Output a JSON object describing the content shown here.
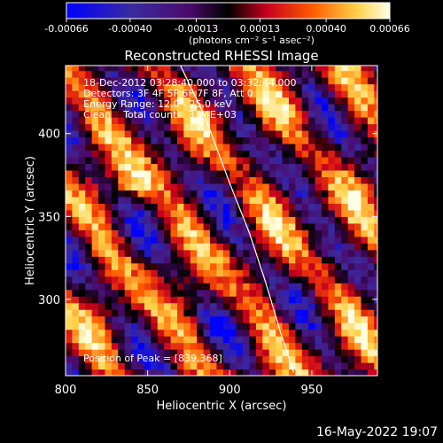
{
  "colorbar": {
    "ticks": [
      "-0.00066",
      "-0.00040",
      "-0.00013",
      "0.00013",
      "0.00040",
      "0.00066"
    ],
    "range": [
      -0.00066,
      0.00066
    ],
    "units_label": "(photons cm⁻² s⁻¹ asec⁻²)",
    "colormap": [
      "#0000ff",
      "#3a2aa0",
      "#4b0b6b",
      "#000000",
      "#c8001e",
      "#ff5a00",
      "#ffd24a",
      "#ffffe6"
    ]
  },
  "chart_data": {
    "type": "heatmap",
    "title": "Reconstructed RHESSI Image",
    "xlabel": "Heliocentric X (arcsec)",
    "ylabel": "Heliocentric Y (arcsec)",
    "xlim": [
      800,
      990
    ],
    "ylim": [
      254,
      441
    ],
    "x_ticks": [
      800,
      850,
      900,
      950
    ],
    "y_ticks": [
      300,
      350,
      400
    ],
    "pixel_size_arcsec": 4,
    "limb_curve": {
      "points": [
        [
          870,
          441
        ],
        [
          885,
          410
        ],
        [
          900,
          370
        ],
        [
          912,
          340
        ],
        [
          922,
          310
        ],
        [
          931,
          280
        ],
        [
          939,
          256
        ]
      ]
    },
    "peak": [
      839,
      368
    ],
    "annotations": [
      "18-Dec-2012 03:28:40.000 to 03:32:44.000",
      "Detectors: 3F 4F 5F 6F 7F 8F, Att 0",
      "Energy Range: 12.0 - 25.0 keV",
      "Clean    Total counts: 3.74E+03"
    ],
    "peak_label": "Position of Peak = [839,368]"
  },
  "footer": {
    "date": "16-May-2022 19:07"
  }
}
